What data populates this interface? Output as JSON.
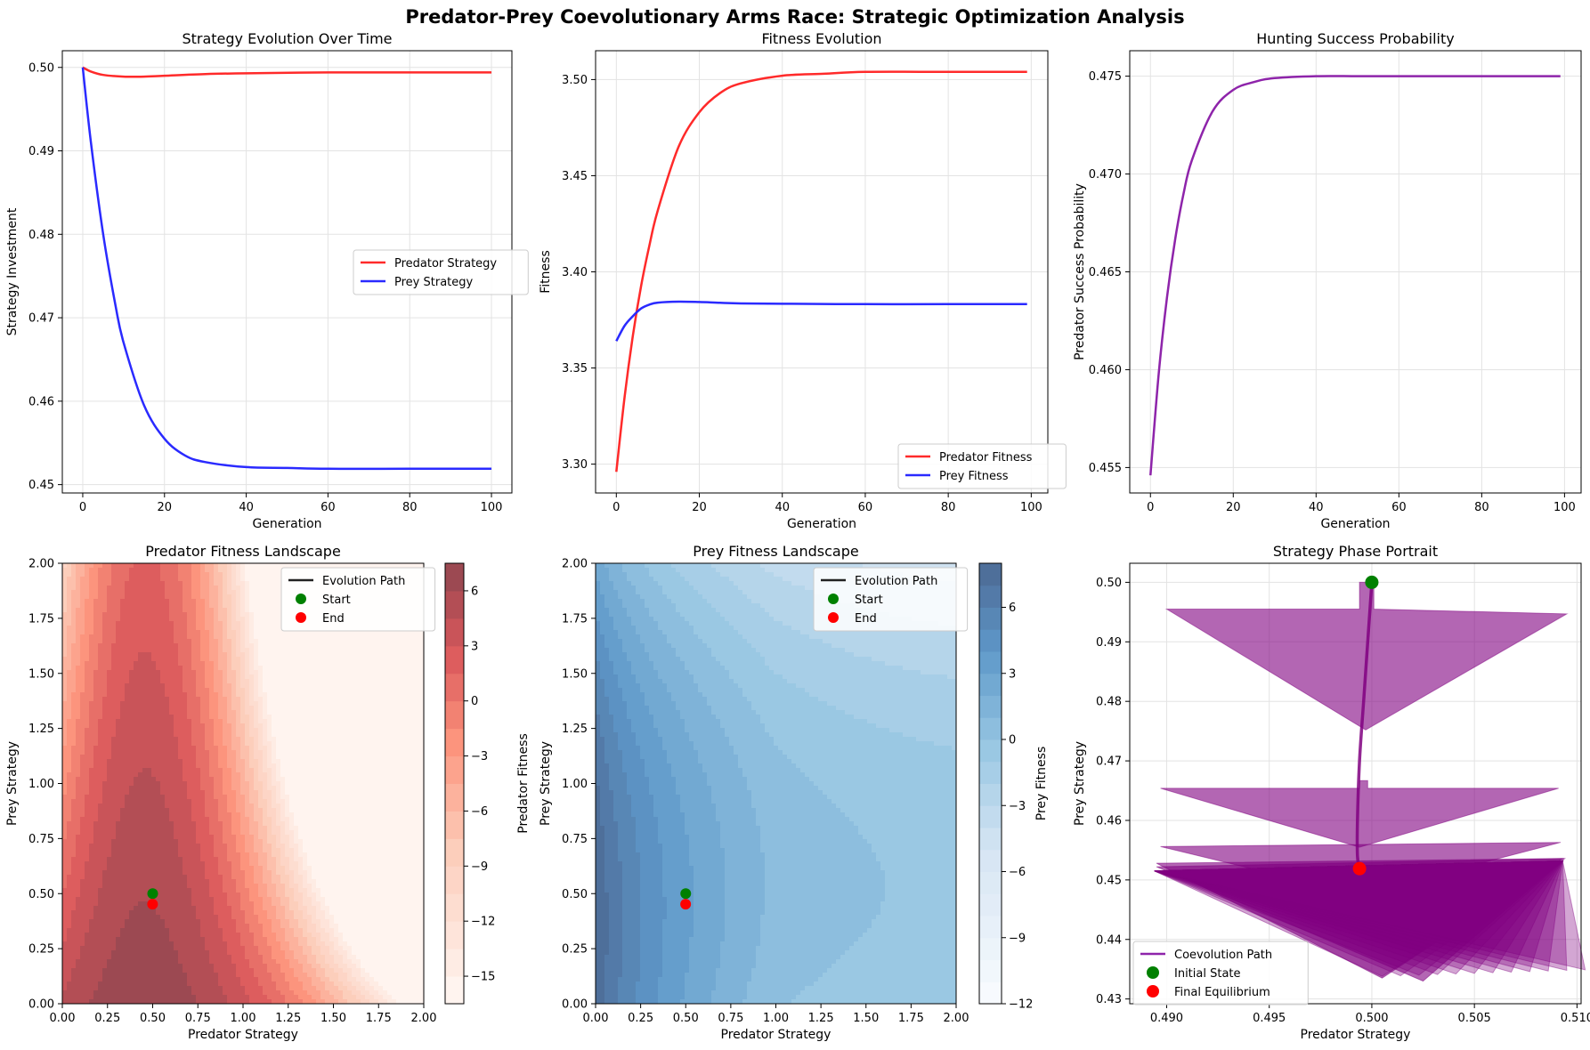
{
  "suptitle": "Predator-Prey Coevolutionary Arms Race: Strategic Optimization Analysis",
  "colors": {
    "predator": "#ff2a2a",
    "prey": "#2a2aff",
    "success": "#8e24aa",
    "path": "#800080",
    "start": "#008000",
    "end": "#ff0000"
  },
  "chart_data": [
    {
      "type": "line",
      "title": "Strategy Evolution Over Time",
      "xlabel": "Generation",
      "ylabel": "Strategy Investment",
      "xlim": [
        -5,
        105
      ],
      "ylim": [
        0.449,
        0.502
      ],
      "xticks": [
        0,
        20,
        40,
        60,
        80,
        100
      ],
      "yticks": [
        0.45,
        0.46,
        0.47,
        0.48,
        0.49,
        0.5
      ],
      "ytick_labels": [
        "0.45",
        "0.46",
        "0.47",
        "0.48",
        "0.49",
        "0.50"
      ],
      "grid": true,
      "legend_position": "center-right",
      "series": [
        {
          "name": "Predator Strategy",
          "color": "#ff2a2a",
          "x": [
            0,
            2,
            5,
            10,
            15,
            20,
            30,
            40,
            60,
            80,
            100
          ],
          "y": [
            0.5,
            0.4995,
            0.4991,
            0.4989,
            0.4989,
            0.499,
            0.4992,
            0.4993,
            0.4994,
            0.4994,
            0.4994
          ]
        },
        {
          "name": "Prey Strategy",
          "color": "#2a2aff",
          "x": [
            0,
            2,
            5,
            8,
            10,
            15,
            20,
            25,
            30,
            40,
            50,
            60,
            80,
            100
          ],
          "y": [
            0.5,
            0.491,
            0.48,
            0.4715,
            0.467,
            0.4595,
            0.4555,
            0.4535,
            0.4527,
            0.4521,
            0.452,
            0.4519,
            0.4519,
            0.4519
          ]
        }
      ]
    },
    {
      "type": "line",
      "title": "Fitness Evolution",
      "xlabel": "Generation",
      "ylabel": "Fitness",
      "xlim": [
        -5,
        104
      ],
      "ylim": [
        3.285,
        3.515
      ],
      "xticks": [
        0,
        20,
        40,
        60,
        80,
        100
      ],
      "yticks": [
        3.3,
        3.35,
        3.4,
        3.45,
        3.5
      ],
      "ytick_labels": [
        "3.30",
        "3.35",
        "3.40",
        "3.45",
        "3.50"
      ],
      "grid": true,
      "legend_position": "lower right",
      "series": [
        {
          "name": "Predator Fitness",
          "color": "#ff2a2a",
          "x": [
            0,
            2,
            4,
            6,
            8,
            10,
            15,
            20,
            25,
            30,
            40,
            50,
            60,
            80,
            99
          ],
          "y": [
            3.296,
            3.335,
            3.367,
            3.393,
            3.414,
            3.432,
            3.465,
            3.483,
            3.493,
            3.498,
            3.502,
            3.503,
            3.504,
            3.504,
            3.504
          ]
        },
        {
          "name": "Prey Fitness",
          "color": "#2a2aff",
          "x": [
            0,
            2,
            4,
            6,
            8,
            10,
            15,
            20,
            25,
            30,
            40,
            60,
            80,
            99
          ],
          "y": [
            3.364,
            3.372,
            3.377,
            3.381,
            3.383,
            3.384,
            3.3845,
            3.3843,
            3.3839,
            3.3836,
            3.3834,
            3.3832,
            3.3832,
            3.3832
          ]
        }
      ]
    },
    {
      "type": "line",
      "title": "Hunting Success Probability",
      "xlabel": "Generation",
      "ylabel": "Predator Success Probability",
      "xlim": [
        -5,
        104
      ],
      "ylim": [
        0.4537,
        0.4763
      ],
      "xticks": [
        0,
        20,
        40,
        60,
        80,
        100
      ],
      "yticks": [
        0.455,
        0.46,
        0.465,
        0.47,
        0.475
      ],
      "ytick_labels": [
        "0.455",
        "0.460",
        "0.465",
        "0.470",
        "0.475"
      ],
      "grid": true,
      "series": [
        {
          "name": "",
          "color": "#8e24aa",
          "x": [
            0,
            2,
            4,
            6,
            8,
            10,
            15,
            20,
            25,
            30,
            40,
            50,
            60,
            80,
            99
          ],
          "y": [
            0.4546,
            0.4598,
            0.4637,
            0.4667,
            0.469,
            0.4707,
            0.4732,
            0.4743,
            0.4747,
            0.4749,
            0.475,
            0.475,
            0.475,
            0.475,
            0.475
          ]
        }
      ]
    },
    {
      "type": "heatmap",
      "title": "Predator Fitness Landscape",
      "xlabel": "Predator Strategy",
      "ylabel": "Prey Strategy",
      "xlim": [
        0,
        2
      ],
      "ylim": [
        0,
        2
      ],
      "xticks": [
        0,
        0.25,
        0.5,
        0.75,
        1.0,
        1.25,
        1.5,
        1.75,
        2.0
      ],
      "xtick_labels": [
        "0.00",
        "0.25",
        "0.50",
        "0.75",
        "1.00",
        "1.25",
        "1.50",
        "1.75",
        "2.00"
      ],
      "yticks": [
        0,
        0.25,
        0.5,
        0.75,
        1.0,
        1.25,
        1.5,
        1.75,
        2.0
      ],
      "ytick_labels": [
        "0.00",
        "0.25",
        "0.50",
        "0.75",
        "1.00",
        "1.25",
        "1.50",
        "1.75",
        "2.00"
      ],
      "colormap": "Reds",
      "colorbar_label": "Predator Fitness",
      "colorbar_range": [
        -16.5,
        7.5
      ],
      "colorbar_ticks": [
        -15,
        -12,
        -9,
        -6,
        -3,
        0,
        3,
        6
      ],
      "colorbar_tick_labels": [
        "−15",
        "−12",
        "−9",
        "−6",
        "−3",
        "0",
        "3",
        "6"
      ],
      "legend_position": "upper right",
      "legend": [
        "Evolution Path",
        "Start",
        "End"
      ],
      "start": [
        0.5,
        0.5
      ],
      "end": [
        0.4994,
        0.4519
      ]
    },
    {
      "type": "heatmap",
      "title": "Prey Fitness Landscape",
      "xlabel": "Predator Strategy",
      "ylabel": "Prey Strategy",
      "xlim": [
        0,
        2
      ],
      "ylim": [
        0,
        2
      ],
      "xticks": [
        0,
        0.25,
        0.5,
        0.75,
        1.0,
        1.25,
        1.5,
        1.75,
        2.0
      ],
      "xtick_labels": [
        "0.00",
        "0.25",
        "0.50",
        "0.75",
        "1.00",
        "1.25",
        "1.50",
        "1.75",
        "2.00"
      ],
      "yticks": [
        0,
        0.25,
        0.5,
        0.75,
        1.0,
        1.25,
        1.5,
        1.75,
        2.0
      ],
      "ytick_labels": [
        "0.00",
        "0.25",
        "0.50",
        "0.75",
        "1.00",
        "1.25",
        "1.50",
        "1.75",
        "2.00"
      ],
      "colormap": "Blues",
      "colorbar_label": "Prey Fitness",
      "colorbar_range": [
        -12,
        8
      ],
      "colorbar_ticks": [
        -12,
        -9,
        -6,
        -3,
        0,
        3,
        6
      ],
      "colorbar_tick_labels": [
        "−12",
        "−9",
        "−6",
        "−3",
        "0",
        "3",
        "6"
      ],
      "legend_position": "upper right",
      "legend": [
        "Evolution Path",
        "Start",
        "End"
      ],
      "start": [
        0.5,
        0.5
      ],
      "end": [
        0.4994,
        0.4519
      ]
    },
    {
      "type": "line",
      "title": "Strategy Phase Portrait",
      "xlabel": "Predator Strategy",
      "ylabel": "Prey Strategy",
      "xlim": [
        0.4882,
        0.5102
      ],
      "ylim": [
        0.4292,
        0.5032
      ],
      "xticks": [
        0.49,
        0.495,
        0.5,
        0.505,
        0.51
      ],
      "xtick_labels": [
        "0.490",
        "0.495",
        "0.500",
        "0.505",
        "0.510"
      ],
      "yticks": [
        0.43,
        0.44,
        0.45,
        0.46,
        0.47,
        0.48,
        0.49,
        0.5
      ],
      "ytick_labels": [
        "0.43",
        "0.44",
        "0.45",
        "0.46",
        "0.47",
        "0.48",
        "0.49",
        "0.50"
      ],
      "grid": true,
      "legend_position": "lower left",
      "legend": [
        "Coevolution Path",
        "Initial State",
        "Final Equilibrium"
      ],
      "path": {
        "x": [
          0.5,
          0.4998,
          0.4996,
          0.4994,
          0.4993,
          0.4993,
          0.4994
        ],
        "y": [
          0.5,
          0.49,
          0.48,
          0.47,
          0.46,
          0.454,
          0.4519
        ]
      },
      "initial": [
        0.5,
        0.5
      ],
      "final": [
        0.4994,
        0.4519
      ]
    }
  ]
}
